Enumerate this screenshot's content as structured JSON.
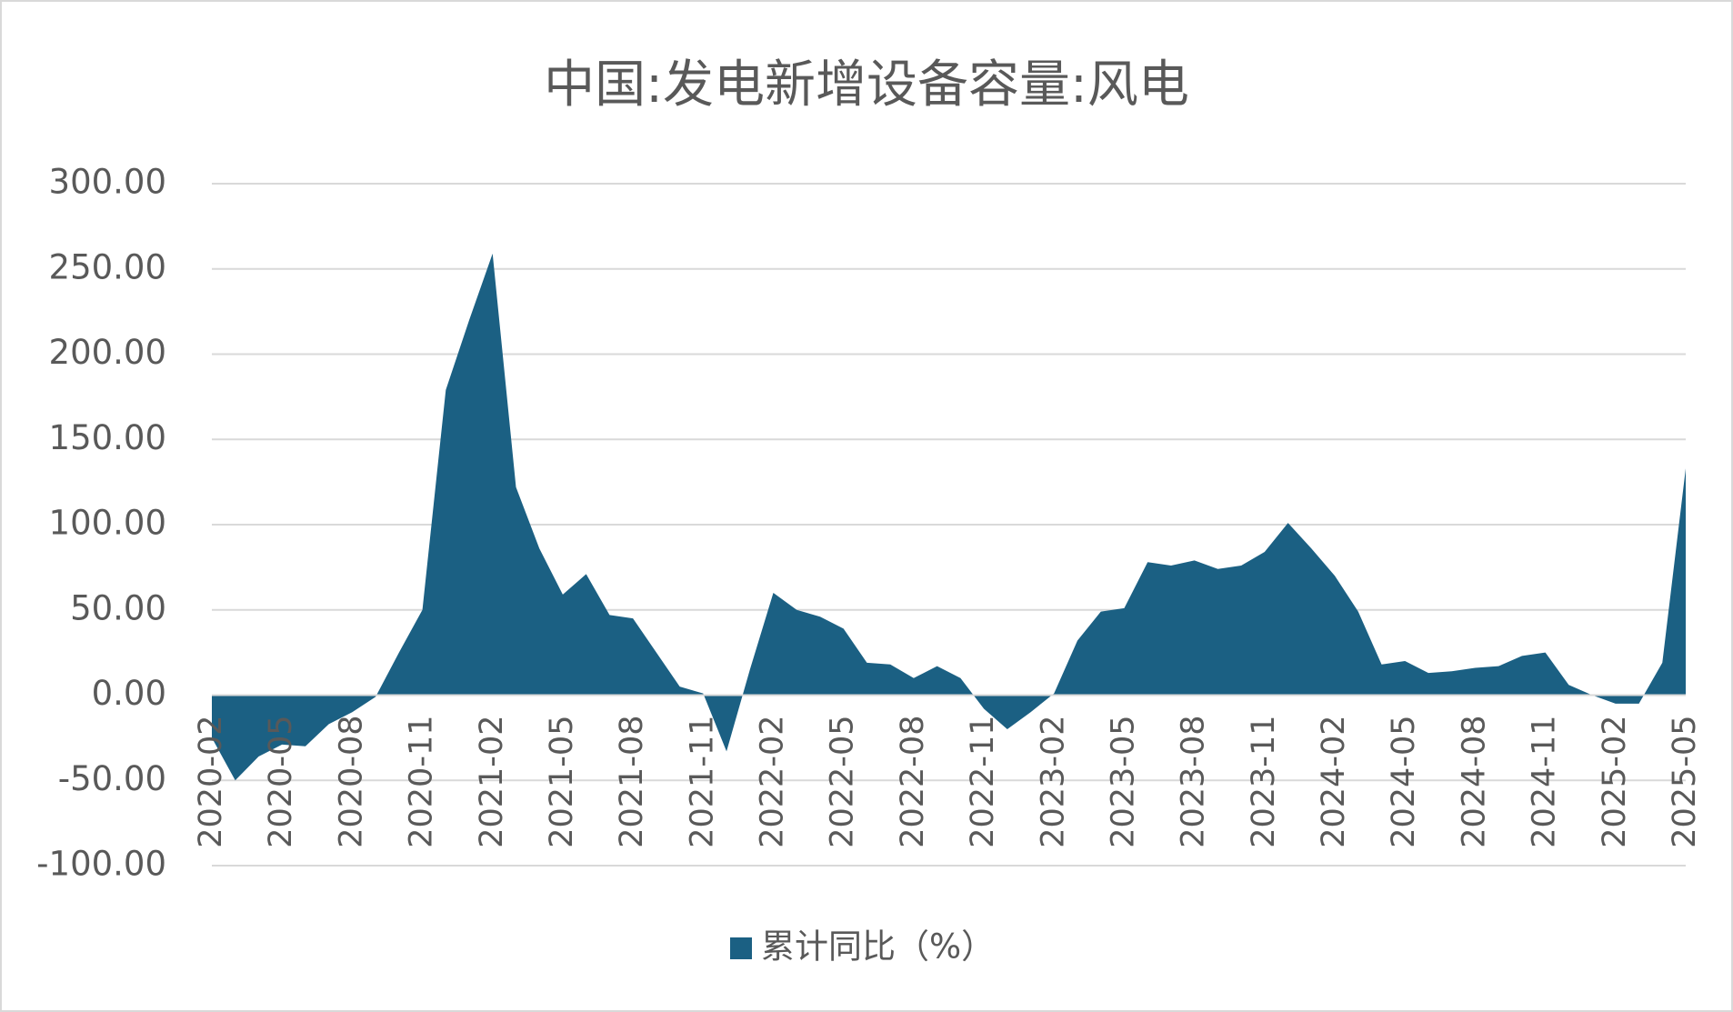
{
  "chart_data": {
    "type": "area",
    "title": "中国:发电新增设备容量:风电",
    "categories": [
      "2020-02",
      null,
      null,
      "2020-05",
      null,
      null,
      "2020-08",
      null,
      null,
      "2020-11",
      null,
      null,
      "2021-02",
      null,
      null,
      "2021-05",
      null,
      null,
      "2021-08",
      null,
      null,
      "2021-11",
      null,
      null,
      "2022-02",
      null,
      null,
      "2022-05",
      null,
      null,
      "2022-08",
      null,
      null,
      "2022-11",
      null,
      null,
      "2023-02",
      null,
      null,
      "2023-05",
      null,
      null,
      "2023-08",
      null,
      null,
      "2023-11",
      null,
      null,
      "2024-02",
      null,
      null,
      "2024-05",
      null,
      null,
      "2024-08",
      null,
      null,
      "2024-11",
      null,
      null,
      "2025-02",
      null,
      null,
      "2025-05"
    ],
    "series": [
      {
        "name": "累计同比（%）",
        "color": "#1b6083",
        "values": [
          -25,
          -50,
          -36,
          -29,
          -30,
          -17,
          -10,
          -1,
          25,
          50,
          179,
          220,
          259,
          122,
          86,
          59,
          71,
          47,
          45,
          25,
          5,
          1,
          -33,
          15,
          60,
          50,
          46,
          39,
          19,
          18,
          10,
          17,
          10,
          -8,
          -20,
          -10,
          1,
          32,
          49,
          51,
          78,
          76,
          79,
          74,
          76,
          84,
          101,
          86,
          70,
          49,
          18,
          20,
          13,
          14,
          16,
          17,
          23,
          25,
          6,
          0,
          -5,
          -5,
          19,
          133
        ]
      }
    ],
    "ylim": [
      -100,
      300
    ],
    "yticks": [
      {
        "value": -100,
        "label": "-100.00"
      },
      {
        "value": -50,
        "label": "-50.00"
      },
      {
        "value": 0,
        "label": "0.00"
      },
      {
        "value": 50,
        "label": "50.00"
      },
      {
        "value": 100,
        "label": "100.00"
      },
      {
        "value": 150,
        "label": "150.00"
      },
      {
        "value": 200,
        "label": "200.00"
      },
      {
        "value": 250,
        "label": "250.00"
      },
      {
        "value": 300,
        "label": "300.00"
      }
    ],
    "grid": true,
    "legend": "bottom"
  }
}
